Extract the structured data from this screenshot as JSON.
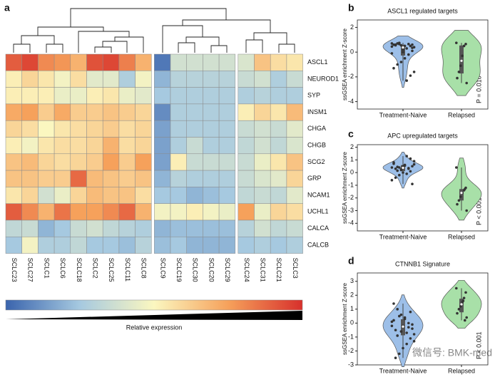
{
  "chart_data": [
    {
      "type": "heatmap",
      "panel": "a",
      "rows": [
        "ASCL1",
        "NEUROD1",
        "SYP",
        "INSM1",
        "CHGA",
        "CHGB",
        "SCG2",
        "GRP",
        "NCAM1",
        "UCHL1",
        "CALCA",
        "CALCB"
      ],
      "columns": [
        "SCLC23",
        "SCLC27",
        "SCLC1",
        "SCLC6",
        "SCLC18",
        "SCLC2",
        "SCLC25",
        "SCLC11",
        "SCLC8",
        "SCLC9",
        "SCLC19",
        "SCLC30",
        "SCLC20",
        "SCLC29",
        "SCLC24",
        "SCLC31",
        "SCLC21",
        "SCLC3"
      ],
      "values": [
        [
          1.6,
          1.8,
          1.2,
          1.1,
          0.8,
          1.7,
          1.8,
          1.3,
          0.8,
          -1.8,
          -0.5,
          -0.5,
          -0.5,
          -0.5,
          -0.4,
          0.6,
          0.3,
          0.2
        ],
        [
          0.1,
          0.4,
          0.2,
          -0.1,
          0.3,
          -0.3,
          -0.3,
          -0.9,
          -0.1,
          -1.2,
          -0.8,
          -0.8,
          -0.8,
          -0.8,
          -0.6,
          -0.5,
          -0.9,
          -0.6
        ],
        [
          0.1,
          0.1,
          0.1,
          -0.2,
          -0.2,
          0.1,
          0.2,
          -0.2,
          -0.3,
          -1.0,
          -0.9,
          -0.9,
          -0.9,
          -0.9,
          -0.9,
          -0.8,
          -0.9,
          -0.9
        ],
        [
          0.9,
          1.0,
          0.5,
          0.9,
          0.5,
          0.5,
          0.6,
          0.5,
          0.4,
          -1.6,
          -0.9,
          -0.9,
          -0.9,
          -0.9,
          0.1,
          0.4,
          0.2,
          0.7
        ],
        [
          0.4,
          0.3,
          0.0,
          0.2,
          0.3,
          0.4,
          0.5,
          0.3,
          0.4,
          -1.4,
          -0.9,
          -0.9,
          -0.9,
          -0.9,
          -0.6,
          -0.5,
          -0.6,
          -0.3
        ],
        [
          0.1,
          -0.1,
          0.2,
          0.3,
          0.3,
          0.4,
          0.8,
          0.3,
          0.4,
          -1.4,
          -0.9,
          -0.6,
          -0.9,
          -0.9,
          -0.7,
          -0.5,
          -0.7,
          -0.4
        ],
        [
          0.6,
          0.7,
          0.4,
          0.3,
          0.4,
          0.5,
          1.0,
          0.5,
          1.0,
          -1.4,
          0.1,
          -0.6,
          -0.6,
          -0.6,
          -0.6,
          -0.2,
          0.2,
          0.6
        ],
        [
          0.6,
          0.6,
          0.5,
          0.5,
          1.5,
          0.7,
          0.6,
          0.5,
          0.6,
          -1.2,
          -0.8,
          -0.9,
          -0.9,
          -0.9,
          -0.6,
          -0.4,
          -0.3,
          0.4
        ],
        [
          0.2,
          0.4,
          -0.5,
          -0.2,
          0.4,
          0.7,
          0.6,
          0.6,
          0.3,
          -1.0,
          -1.0,
          -1.2,
          -1.1,
          -1.0,
          -0.7,
          -0.6,
          -0.7,
          -0.3
        ],
        [
          1.6,
          1.2,
          0.8,
          1.4,
          1.0,
          1.0,
          1.2,
          1.5,
          0.8,
          -0.1,
          -0.1,
          0.1,
          -0.1,
          -0.2,
          1.0,
          -0.2,
          0.4,
          0.3
        ],
        [
          -0.7,
          -0.6,
          -1.2,
          -1.0,
          -0.6,
          -0.5,
          -0.7,
          -0.8,
          -0.9,
          -1.2,
          -1.1,
          -1.1,
          -1.1,
          -1.1,
          -0.8,
          -0.5,
          -0.7,
          -0.6
        ],
        [
          -1.0,
          -0.1,
          -0.9,
          -0.9,
          -0.7,
          -1.0,
          -1.0,
          -1.1,
          -0.8,
          -1.1,
          -1.0,
          -1.2,
          -1.2,
          -1.2,
          -1.0,
          -0.9,
          -1.0,
          -0.9
        ]
      ],
      "zlim": [
        -2,
        2
      ],
      "colormap": [
        "#3a64ad",
        "#a6c9e0",
        "#fbf7c0",
        "#f6a15b",
        "#d7302c"
      ],
      "colorbar_label": "Relative expression"
    },
    {
      "type": "violin",
      "panel": "b",
      "title": "ASCL1 regulated targets",
      "ylabel": "ssGSEA enrichment Z-score",
      "categories": [
        "Treatment-Naive",
        "Relapsed"
      ],
      "colors": [
        "#9dbfe8",
        "#a8e0a8"
      ],
      "values": [
        [
          0.7,
          0.6,
          0.65,
          0.5,
          0.55,
          0.7,
          0.6,
          0.4,
          0.5,
          0.3,
          0.2,
          0.65,
          0.55,
          0.45,
          0.1,
          -0.2,
          -0.5,
          -0.8,
          -1.0,
          -1.3,
          -1.6,
          -1.9,
          -2.3,
          0.0,
          0.75,
          0.6,
          -0.1,
          0.35
        ],
        [
          0.75,
          0.65,
          0.5,
          -0.3,
          -1.1,
          -1.6,
          -2.1,
          -2.5
        ]
      ],
      "ylim": [
        -4.6,
        2.6
      ],
      "yticks": [
        -4,
        -2,
        0,
        2
      ],
      "annotation": "P = 0.010"
    },
    {
      "type": "violin",
      "panel": "c",
      "title": "APC upregulated targets",
      "ylabel": "ssGSEA enrichment Z-score",
      "categories": [
        "Treatment-Naive",
        "Relapsed"
      ],
      "colors": [
        "#9dbfe8",
        "#a8e0a8"
      ],
      "values": [
        [
          0.4,
          0.5,
          0.3,
          0.6,
          0.2,
          0.45,
          0.7,
          0.9,
          1.1,
          1.3,
          0.0,
          -0.2,
          -0.4,
          -0.6,
          -0.9,
          0.35,
          0.55,
          0.25,
          0.15,
          0.8,
          0.65,
          0.1,
          -0.1,
          0.5,
          0.4,
          0.3
        ],
        [
          0.4,
          -1.2,
          -1.4,
          -1.6,
          -1.9,
          -2.2,
          -2.5,
          -3.0,
          -1.3
        ]
      ],
      "ylim": [
        -4.6,
        2.2
      ],
      "yticks": [
        -4,
        -3,
        -2,
        -1,
        0,
        1,
        2
      ],
      "annotation": "P < 0.001"
    },
    {
      "type": "violin",
      "panel": "d",
      "title": "CTNNB1 Signature",
      "ylabel": "ssGSEA enrichment Z-score",
      "categories": [
        "Treatment-Naive",
        "Relapsed"
      ],
      "colors": [
        "#9dbfe8",
        "#a8e0a8"
      ],
      "values": [
        [
          -0.2,
          -0.4,
          0.0,
          0.3,
          0.6,
          1.0,
          1.4,
          -0.8,
          -1.1,
          -1.5,
          -1.8,
          -2.2,
          -0.5,
          0.1,
          -0.1,
          -0.3,
          0.4,
          -0.6,
          -0.9,
          0.2,
          -1.3,
          0.8,
          -0.7,
          -0.2,
          0.5,
          -2.5
        ],
        [
          2.5,
          2.2,
          1.8,
          1.5,
          1.2,
          1.0,
          0.7,
          0.4,
          0.2,
          1.6
        ]
      ],
      "ylim": [
        -3,
        3.6
      ],
      "yticks": [
        -3,
        -2,
        -1,
        0,
        1,
        2,
        3
      ],
      "annotation": "P < 0.001"
    }
  ],
  "watermark": "微信号: BMK-med"
}
